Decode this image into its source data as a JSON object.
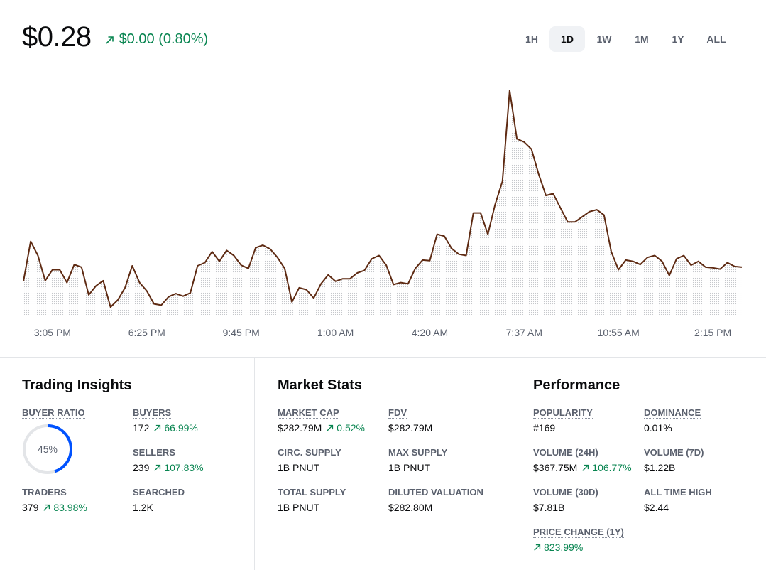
{
  "header": {
    "price": "$0.28",
    "change": "$0.00",
    "change_pct": "(0.80%)",
    "ranges": [
      "1H",
      "1D",
      "1W",
      "1M",
      "1Y",
      "ALL"
    ]
  },
  "chart_data": {
    "type": "line",
    "color": "#5e2a12",
    "categories": [
      null,
      null,
      null,
      null,
      "3:05 PM",
      null,
      null,
      null,
      null,
      null,
      null,
      null,
      null,
      null,
      null,
      null,
      null,
      "6:25 PM",
      null,
      null,
      null,
      null,
      null,
      null,
      null,
      null,
      null,
      null,
      null,
      null,
      "9:45 PM",
      null,
      null,
      null,
      null,
      null,
      null,
      null,
      null,
      null,
      null,
      null,
      null,
      "1:00 AM",
      null,
      null,
      null,
      null,
      null,
      null,
      null,
      null,
      null,
      null,
      null,
      null,
      "4:20 AM",
      null,
      null,
      null,
      null,
      null,
      null,
      null,
      null,
      null,
      null,
      null,
      null,
      "7:37 AM",
      null,
      null,
      null,
      null,
      null,
      null,
      null,
      null,
      null,
      null,
      null,
      null,
      "10:55 AM",
      null,
      null,
      null,
      null,
      null,
      null,
      null,
      null,
      null,
      null,
      null,
      null,
      "2:15 PM",
      null,
      null,
      null,
      null
    ],
    "values": [
      0.2778,
      0.284,
      0.2818,
      0.2779,
      0.2796,
      0.2796,
      0.2776,
      0.2804,
      0.28,
      0.2757,
      0.2771,
      0.2779,
      0.2738,
      0.2749,
      0.2768,
      0.2802,
      0.2776,
      0.2763,
      0.2743,
      0.2741,
      0.2754,
      0.2759,
      0.2755,
      0.276,
      0.2802,
      0.2807,
      0.2824,
      0.2809,
      0.2826,
      0.2818,
      0.2803,
      0.2798,
      0.283,
      0.2834,
      0.2828,
      0.2815,
      0.2798,
      0.2746,
      0.2768,
      0.2765,
      0.2752,
      0.2774,
      0.2788,
      0.2778,
      0.2782,
      0.2782,
      0.2791,
      0.2795,
      0.2813,
      0.2818,
      0.2803,
      0.2773,
      0.2776,
      0.2774,
      0.2798,
      0.2811,
      0.281,
      0.2851,
      0.2848,
      0.2829,
      0.282,
      0.2818,
      0.2884,
      0.2884,
      0.2851,
      0.2897,
      0.2933,
      0.3074,
      0.2999,
      0.2994,
      0.2983,
      0.2944,
      0.2911,
      0.2914,
      0.2892,
      0.287,
      0.287,
      0.2878,
      0.2886,
      0.2889,
      0.2881,
      0.2824,
      0.2796,
      0.2811,
      0.2809,
      0.2804,
      0.2815,
      0.2818,
      0.2809,
      0.2787,
      0.2813,
      0.2818,
      0.2803,
      0.2809,
      0.28,
      0.2799,
      0.2797,
      0.2807,
      0.2801,
      0.28
    ],
    "ylim": [
      0.2726,
      0.3104
    ]
  },
  "sections": [
    {
      "title": "Trading Insights",
      "items": [
        {
          "label": "BUYER RATIO",
          "value": 45,
          "value_label": "45%"
        },
        {
          "label": "BUYERS",
          "value": "172",
          "change": "66.99%"
        },
        {
          "label": "SELLERS",
          "value": "239",
          "change": "107.83%"
        },
        {
          "label": "TRADERS",
          "value": "379",
          "change": "83.98%"
        },
        {
          "label": "SEARCHED",
          "value": "1.2K"
        }
      ]
    },
    {
      "title": "Market Stats",
      "items": [
        {
          "label": "MARKET CAP",
          "value": "$282.79M",
          "change": "0.52%"
        },
        {
          "label": "FDV",
          "value": "$282.79M"
        },
        {
          "label": "CIRC. SUPPLY",
          "value": "1B PNUT"
        },
        {
          "label": "MAX SUPPLY",
          "value": "1B PNUT"
        },
        {
          "label": "TOTAL SUPPLY",
          "value": "1B PNUT"
        },
        {
          "label": "DILUTED VALUATION",
          "value": "$282.80M"
        }
      ]
    },
    {
      "title": "Performance",
      "items": [
        {
          "label": "POPULARITY",
          "value": "#169"
        },
        {
          "label": "DOMINANCE",
          "value": "0.01%"
        },
        {
          "label": "VOLUME (24H)",
          "value": "$367.75M",
          "change": "106.77%"
        },
        {
          "label": "VOLUME (7D)",
          "value": "$1.22B"
        },
        {
          "label": "VOLUME (30D)",
          "value": "$7.81B"
        },
        {
          "label": "ALL TIME HIGH",
          "value": "$2.44"
        },
        {
          "label": "PRICE CHANGE (1Y)",
          "change": "823.99%"
        }
      ]
    }
  ]
}
